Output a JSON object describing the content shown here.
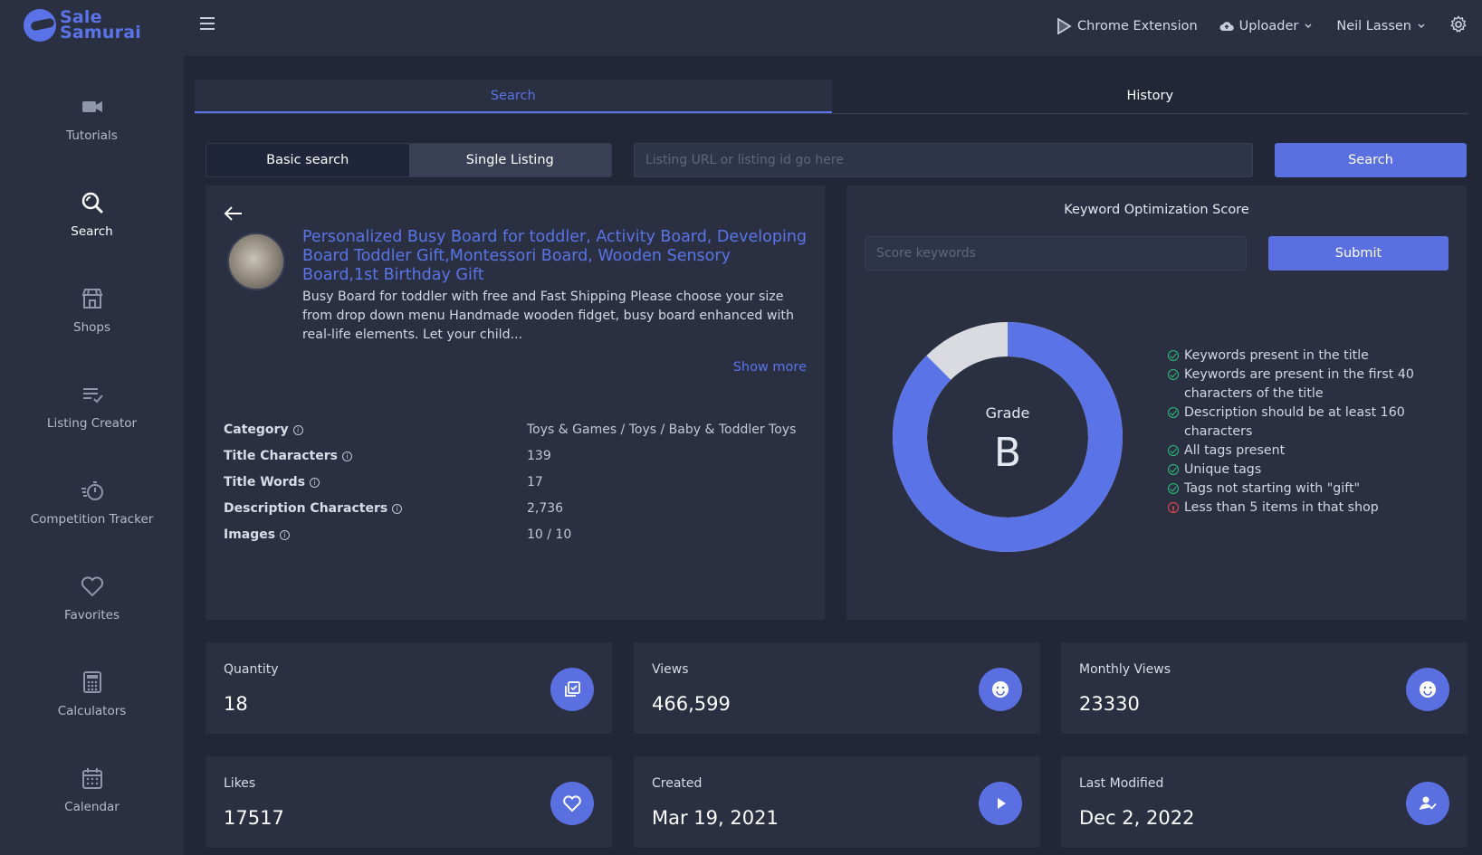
{
  "brand": {
    "line1": "Sale",
    "line2": "Samurai"
  },
  "sidebar": {
    "items": [
      {
        "label": "Tutorials",
        "icon": "video-camera-icon"
      },
      {
        "label": "Search",
        "icon": "search-icon",
        "active": true
      },
      {
        "label": "Shops",
        "icon": "store-icon"
      },
      {
        "label": "Listing Creator",
        "icon": "list-check-icon"
      },
      {
        "label": "Competition Tracker",
        "icon": "stopwatch-icon"
      },
      {
        "label": "Favorites",
        "icon": "heart-icon"
      },
      {
        "label": "Calculators",
        "icon": "calculator-icon"
      },
      {
        "label": "Calendar",
        "icon": "calendar-icon"
      }
    ]
  },
  "topbar": {
    "chrome_extension": "Chrome Extension",
    "uploader": "Uploader",
    "user": "Neil Lassen"
  },
  "tabs": {
    "search": "Search",
    "history": "History"
  },
  "search": {
    "basic": "Basic search",
    "single": "Single Listing",
    "placeholder": "Listing URL or listing id go here",
    "button": "Search"
  },
  "listing": {
    "title": "Personalized Busy Board for toddler, Activity Board, Developing Board Toddler Gift,Montessori Board, Wooden Sensory Board,1st Birthday Gift",
    "description": "Busy Board for toddler with free and Fast Shipping Please choose your size from drop down menu Handmade wooden fidget, busy board enhanced with real-life elements. Let your child...",
    "show_more": "Show more",
    "attributes": [
      {
        "key": "Category",
        "value": "Toys & Games / Toys / Baby & Toddler Toys"
      },
      {
        "key": "Title Characters",
        "value": "139"
      },
      {
        "key": "Title Words",
        "value": "17"
      },
      {
        "key": "Description Characters",
        "value": "2,736"
      },
      {
        "key": "Images",
        "value": "10 / 10"
      }
    ]
  },
  "score": {
    "title": "Keyword Optimization Score",
    "placeholder": "Score keywords",
    "submit": "Submit",
    "grade_label": "Grade",
    "grade": "B",
    "fill_fraction": 0.875,
    "fill_color": "#5a74e8",
    "rest_color": "#d9dbe0",
    "checks": [
      {
        "text": "Keywords present in the title",
        "ok": true
      },
      {
        "text": "Keywords are present in the first 40 characters of the title",
        "ok": true
      },
      {
        "text": "Description should be at least 160 characters",
        "ok": true
      },
      {
        "text": "All tags present",
        "ok": true
      },
      {
        "text": "Unique tags",
        "ok": true
      },
      {
        "text": "Tags not starting with \"gift\"",
        "ok": true
      },
      {
        "text": "Less than 5 items in that shop",
        "ok": false
      }
    ]
  },
  "stats": [
    {
      "label": "Quantity",
      "value": "18",
      "icon": "copy-check-icon"
    },
    {
      "label": "Views",
      "value": "466,599",
      "icon": "smile-icon"
    },
    {
      "label": "Monthly Views",
      "value": "23330",
      "icon": "smile-icon"
    },
    {
      "label": "Likes",
      "value": "17517",
      "icon": "heart-icon"
    },
    {
      "label": "Created",
      "value": "Mar 19, 2021",
      "icon": "play-icon"
    },
    {
      "label": "Last Modified",
      "value": "Dec 2, 2022",
      "icon": "user-check-icon"
    }
  ]
}
